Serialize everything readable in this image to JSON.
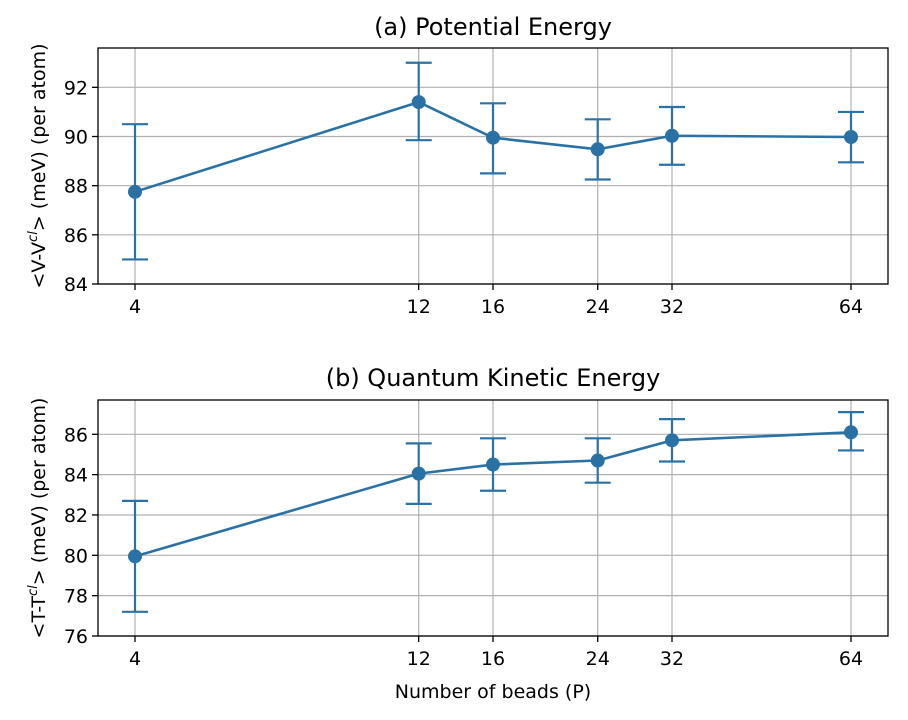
{
  "chart_data": [
    {
      "type": "line",
      "title": "(a) Potential Energy",
      "ylabel": "<V-V",
      "ylabel_sup": "cl",
      "ylabel_rest": "> (meV) (per atom)",
      "xlabel": "",
      "x": [
        4,
        12,
        16,
        24,
        32,
        64
      ],
      "x_ticks": [
        "4",
        "12",
        "16",
        "24",
        "32",
        "64"
      ],
      "x_scale": "log2",
      "y_ticks": [
        84,
        86,
        88,
        90,
        92
      ],
      "ylim": [
        84,
        93.6
      ],
      "grid": true,
      "color": "#2a72a6",
      "series": [
        {
          "values": [
            87.75,
            91.4,
            89.95,
            89.48,
            90.03,
            89.98
          ],
          "err_low": [
            85.0,
            89.85,
            88.5,
            88.25,
            88.85,
            88.95
          ],
          "err_high": [
            90.5,
            93.0,
            91.35,
            90.7,
            91.2,
            91.0
          ]
        }
      ]
    },
    {
      "type": "line",
      "title": "(b) Quantum Kinetic Energy",
      "ylabel": "<T-T",
      "ylabel_sup": "cl",
      "ylabel_rest": "> (meV) (per atom)",
      "xlabel": "Number of beads (P)",
      "x": [
        4,
        12,
        16,
        24,
        32,
        64
      ],
      "x_ticks": [
        "4",
        "12",
        "16",
        "24",
        "32",
        "64"
      ],
      "x_scale": "log2",
      "y_ticks": [
        76,
        78,
        80,
        82,
        84,
        86
      ],
      "ylim": [
        76,
        87.7
      ],
      "grid": true,
      "color": "#2a72a6",
      "series": [
        {
          "values": [
            79.95,
            84.05,
            84.5,
            84.7,
            85.7,
            86.1
          ],
          "err_low": [
            77.2,
            82.55,
            83.2,
            83.6,
            84.65,
            85.2
          ],
          "err_high": [
            82.7,
            85.55,
            85.8,
            85.8,
            86.75,
            87.1
          ]
        }
      ]
    }
  ]
}
